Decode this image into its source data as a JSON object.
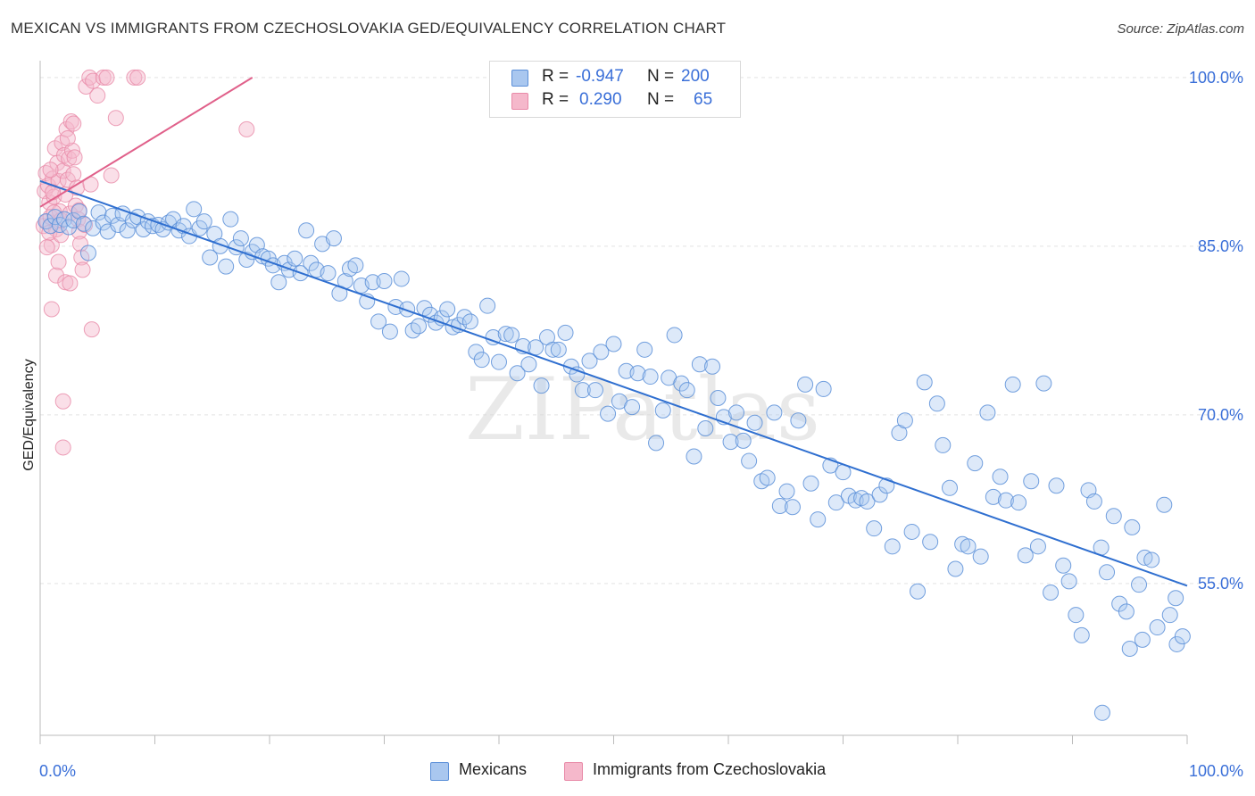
{
  "title": "MEXICAN VS IMMIGRANTS FROM CZECHOSLOVAKIA GED/EQUIVALENCY CORRELATION CHART",
  "source": "Source: ZipAtlas.com",
  "watermark": "ZIPatlas",
  "colors": {
    "blue_fill": "#a9c7ef",
    "blue_stroke": "#5b8fd8",
    "blue_line": "#2f6fd0",
    "pink_fill": "#f5b8cb",
    "pink_stroke": "#e88aa8",
    "pink_line": "#e0608a",
    "tick_label": "#3a6fd8",
    "grid": "#e3e3e3"
  },
  "legend": {
    "rows": [
      {
        "r_label": "R =",
        "r_value": "-0.947",
        "n_label": "N =",
        "n_value": "200"
      },
      {
        "r_label": "R =",
        "r_value": "0.290",
        "n_label": "N =",
        "n_value": "65"
      }
    ]
  },
  "bottom_legend": [
    "Mexicans",
    "Immigrants from Czechoslovakia"
  ],
  "chart_data": {
    "type": "scatter",
    "ylabel": "GED/Equivalency",
    "xlabel": "",
    "x_tick_labels": [
      "0.0%",
      "100.0%"
    ],
    "y_tick_labels": [
      "100.0%",
      "85.0%",
      "70.0%",
      "55.0%"
    ],
    "y_ticks": [
      100,
      85,
      70,
      55
    ],
    "xlim": [
      0,
      100
    ],
    "ylim": [
      41.5,
      101.5
    ],
    "grid": true,
    "legend_position": "top-center",
    "series": [
      {
        "name": "Mexicans",
        "trend": {
          "x": [
            0,
            100
          ],
          "y": [
            90.8,
            54.8
          ]
        },
        "points": [
          [
            0.5,
            87.2
          ],
          [
            0.9,
            86.8
          ],
          [
            1.3,
            87.6
          ],
          [
            1.7,
            86.9
          ],
          [
            2.1,
            87.4
          ],
          [
            2.5,
            86.7
          ],
          [
            2.9,
            87.3
          ],
          [
            3.4,
            88.1
          ],
          [
            3.8,
            87.0
          ],
          [
            4.2,
            84.4
          ],
          [
            4.6,
            86.6
          ],
          [
            5.1,
            88.0
          ],
          [
            5.5,
            87.1
          ],
          [
            5.9,
            86.3
          ],
          [
            6.3,
            87.7
          ],
          [
            6.8,
            86.9
          ],
          [
            7.2,
            87.9
          ],
          [
            7.6,
            86.4
          ],
          [
            8.1,
            87.3
          ],
          [
            8.5,
            87.6
          ],
          [
            9.0,
            86.5
          ],
          [
            9.4,
            87.2
          ],
          [
            9.8,
            86.8
          ],
          [
            10.3,
            86.9
          ],
          [
            10.7,
            86.5
          ],
          [
            11.2,
            87.1
          ],
          [
            11.6,
            87.4
          ],
          [
            12.1,
            86.4
          ],
          [
            12.5,
            86.8
          ],
          [
            13.0,
            85.9
          ],
          [
            13.4,
            88.3
          ],
          [
            13.9,
            86.6
          ],
          [
            14.3,
            87.2
          ],
          [
            14.8,
            84.0
          ],
          [
            15.2,
            86.1
          ],
          [
            15.7,
            85.0
          ],
          [
            16.2,
            83.2
          ],
          [
            16.6,
            87.4
          ],
          [
            17.1,
            84.9
          ],
          [
            17.5,
            85.7
          ],
          [
            18.0,
            83.8
          ],
          [
            18.5,
            84.5
          ],
          [
            18.9,
            85.1
          ],
          [
            19.4,
            84.1
          ],
          [
            19.9,
            83.9
          ],
          [
            20.3,
            83.3
          ],
          [
            20.8,
            81.8
          ],
          [
            21.3,
            83.5
          ],
          [
            21.7,
            82.9
          ],
          [
            22.2,
            83.9
          ],
          [
            22.7,
            82.6
          ],
          [
            23.2,
            86.4
          ],
          [
            23.6,
            83.5
          ],
          [
            24.1,
            82.9
          ],
          [
            24.6,
            85.2
          ],
          [
            25.1,
            82.6
          ],
          [
            25.6,
            85.7
          ],
          [
            26.1,
            80.8
          ],
          [
            26.6,
            81.9
          ],
          [
            27.0,
            83.0
          ],
          [
            27.5,
            83.3
          ],
          [
            28.0,
            81.5
          ],
          [
            28.5,
            80.1
          ],
          [
            29.0,
            81.8
          ],
          [
            29.5,
            78.3
          ],
          [
            30.0,
            81.9
          ],
          [
            30.5,
            77.4
          ],
          [
            31.0,
            79.6
          ],
          [
            31.5,
            82.1
          ],
          [
            32.0,
            79.4
          ],
          [
            32.5,
            77.5
          ],
          [
            33.0,
            77.9
          ],
          [
            33.5,
            79.5
          ],
          [
            34.0,
            78.9
          ],
          [
            34.5,
            78.2
          ],
          [
            35.0,
            78.6
          ],
          [
            35.5,
            79.4
          ],
          [
            36.0,
            77.8
          ],
          [
            36.5,
            78.0
          ],
          [
            37.0,
            78.7
          ],
          [
            37.5,
            78.3
          ],
          [
            38.0,
            75.6
          ],
          [
            38.5,
            74.9
          ],
          [
            39.0,
            79.7
          ],
          [
            39.5,
            76.9
          ],
          [
            40.0,
            74.7
          ],
          [
            40.6,
            77.2
          ],
          [
            41.1,
            77.1
          ],
          [
            41.6,
            73.7
          ],
          [
            42.1,
            76.1
          ],
          [
            42.6,
            74.5
          ],
          [
            43.2,
            76.0
          ],
          [
            43.7,
            72.6
          ],
          [
            44.2,
            76.9
          ],
          [
            44.7,
            75.8
          ],
          [
            45.2,
            75.8
          ],
          [
            45.8,
            77.3
          ],
          [
            46.3,
            74.3
          ],
          [
            46.8,
            73.6
          ],
          [
            47.3,
            72.2
          ],
          [
            47.9,
            74.8
          ],
          [
            48.4,
            72.2
          ],
          [
            48.9,
            75.6
          ],
          [
            49.5,
            70.1
          ],
          [
            50.0,
            76.3
          ],
          [
            50.5,
            71.2
          ],
          [
            51.1,
            73.9
          ],
          [
            51.6,
            70.7
          ],
          [
            52.1,
            73.7
          ],
          [
            52.7,
            75.8
          ],
          [
            53.2,
            73.4
          ],
          [
            53.7,
            67.5
          ],
          [
            54.3,
            70.4
          ],
          [
            54.8,
            73.3
          ],
          [
            55.3,
            77.1
          ],
          [
            55.9,
            72.8
          ],
          [
            56.4,
            72.2
          ],
          [
            57.0,
            66.3
          ],
          [
            57.5,
            74.5
          ],
          [
            58.0,
            68.8
          ],
          [
            58.6,
            74.3
          ],
          [
            59.1,
            71.5
          ],
          [
            59.6,
            69.8
          ],
          [
            60.2,
            67.6
          ],
          [
            60.7,
            70.2
          ],
          [
            61.3,
            67.7
          ],
          [
            61.8,
            65.9
          ],
          [
            62.3,
            69.3
          ],
          [
            62.9,
            64.1
          ],
          [
            63.4,
            64.4
          ],
          [
            64.0,
            70.2
          ],
          [
            64.5,
            61.9
          ],
          [
            65.1,
            63.2
          ],
          [
            65.6,
            61.8
          ],
          [
            66.1,
            69.5
          ],
          [
            66.7,
            72.7
          ],
          [
            67.2,
            63.9
          ],
          [
            67.8,
            60.7
          ],
          [
            68.3,
            72.3
          ],
          [
            68.9,
            65.5
          ],
          [
            69.4,
            62.2
          ],
          [
            70.0,
            64.9
          ],
          [
            70.5,
            62.8
          ],
          [
            71.1,
            62.4
          ],
          [
            71.6,
            62.6
          ],
          [
            72.1,
            62.3
          ],
          [
            72.7,
            59.9
          ],
          [
            73.2,
            62.9
          ],
          [
            73.8,
            63.7
          ],
          [
            74.3,
            58.3
          ],
          [
            74.9,
            68.4
          ],
          [
            75.4,
            69.5
          ],
          [
            76.0,
            59.6
          ],
          [
            76.5,
            54.3
          ],
          [
            77.1,
            72.9
          ],
          [
            77.6,
            58.7
          ],
          [
            78.2,
            71.0
          ],
          [
            78.7,
            67.3
          ],
          [
            79.3,
            63.5
          ],
          [
            79.8,
            56.3
          ],
          [
            80.4,
            58.5
          ],
          [
            80.9,
            58.3
          ],
          [
            81.5,
            65.7
          ],
          [
            82.0,
            57.4
          ],
          [
            82.6,
            70.2
          ],
          [
            83.1,
            62.7
          ],
          [
            83.7,
            64.5
          ],
          [
            84.2,
            62.4
          ],
          [
            84.8,
            72.7
          ],
          [
            85.3,
            62.2
          ],
          [
            85.9,
            57.5
          ],
          [
            86.4,
            64.1
          ],
          [
            87.0,
            58.3
          ],
          [
            87.5,
            72.8
          ],
          [
            88.1,
            54.2
          ],
          [
            88.6,
            63.7
          ],
          [
            89.2,
            56.6
          ],
          [
            89.7,
            55.2
          ],
          [
            90.3,
            52.2
          ],
          [
            90.8,
            50.4
          ],
          [
            91.4,
            63.3
          ],
          [
            91.9,
            62.3
          ],
          [
            92.5,
            58.2
          ],
          [
            93.0,
            56.0
          ],
          [
            93.6,
            61.0
          ],
          [
            94.1,
            53.2
          ],
          [
            94.7,
            52.5
          ],
          [
            95.2,
            60.0
          ],
          [
            95.8,
            54.9
          ],
          [
            96.3,
            57.3
          ],
          [
            96.9,
            57.1
          ],
          [
            97.4,
            51.1
          ],
          [
            98.0,
            62.0
          ],
          [
            98.5,
            52.2
          ],
          [
            99.1,
            49.6
          ],
          [
            99.6,
            50.3
          ],
          [
            95.0,
            49.2
          ],
          [
            96.1,
            50.0
          ],
          [
            92.6,
            43.5
          ],
          [
            99.0,
            53.7
          ]
        ]
      },
      {
        "name": "Immigrants from Czechoslovakia",
        "trend": {
          "x": [
            0,
            18.5
          ],
          "y": [
            88.5,
            100.0
          ]
        },
        "points": [
          [
            0.3,
            86.8
          ],
          [
            0.4,
            89.9
          ],
          [
            0.5,
            91.5
          ],
          [
            0.6,
            87.2
          ],
          [
            0.7,
            90.4
          ],
          [
            0.8,
            88.9
          ],
          [
            0.9,
            87.6
          ],
          [
            1.0,
            85.1
          ],
          [
            1.1,
            91.0
          ],
          [
            1.2,
            89.4
          ],
          [
            1.3,
            93.7
          ],
          [
            1.4,
            86.5
          ],
          [
            1.5,
            92.4
          ],
          [
            1.6,
            90.8
          ],
          [
            1.7,
            88.1
          ],
          [
            1.8,
            87.3
          ],
          [
            1.9,
            94.2
          ],
          [
            2.0,
            91.7
          ],
          [
            2.1,
            93.1
          ],
          [
            2.2,
            89.6
          ],
          [
            2.3,
            95.4
          ],
          [
            2.4,
            90.9
          ],
          [
            2.5,
            92.8
          ],
          [
            2.6,
            87.9
          ],
          [
            2.7,
            96.1
          ],
          [
            2.8,
            93.5
          ],
          [
            2.9,
            91.4
          ],
          [
            3.0,
            92.9
          ],
          [
            3.1,
            88.6
          ],
          [
            3.2,
            90.2
          ],
          [
            3.3,
            87.4
          ],
          [
            3.4,
            86.3
          ],
          [
            3.5,
            85.2
          ],
          [
            3.6,
            84.0
          ],
          [
            3.7,
            82.9
          ],
          [
            4.0,
            99.2
          ],
          [
            4.3,
            100.0
          ],
          [
            4.6,
            99.7
          ],
          [
            5.0,
            98.4
          ],
          [
            5.5,
            100.0
          ],
          [
            5.8,
            100.0
          ],
          [
            6.2,
            91.3
          ],
          [
            6.6,
            96.4
          ],
          [
            8.2,
            100.0
          ],
          [
            8.5,
            100.0
          ],
          [
            1.0,
            79.4
          ],
          [
            1.4,
            82.4
          ],
          [
            2.0,
            71.2
          ],
          [
            2.0,
            67.1
          ],
          [
            1.6,
            83.6
          ],
          [
            2.2,
            81.8
          ],
          [
            4.5,
            77.6
          ],
          [
            18.0,
            95.4
          ],
          [
            0.8,
            86.2
          ],
          [
            1.2,
            88.0
          ],
          [
            2.6,
            81.7
          ],
          [
            3.9,
            86.9
          ],
          [
            0.6,
            84.9
          ],
          [
            1.8,
            86.0
          ],
          [
            3.4,
            88.2
          ],
          [
            2.4,
            94.6
          ],
          [
            1.1,
            89.8
          ],
          [
            0.9,
            91.8
          ],
          [
            4.4,
            90.5
          ],
          [
            2.9,
            95.9
          ]
        ]
      }
    ]
  }
}
